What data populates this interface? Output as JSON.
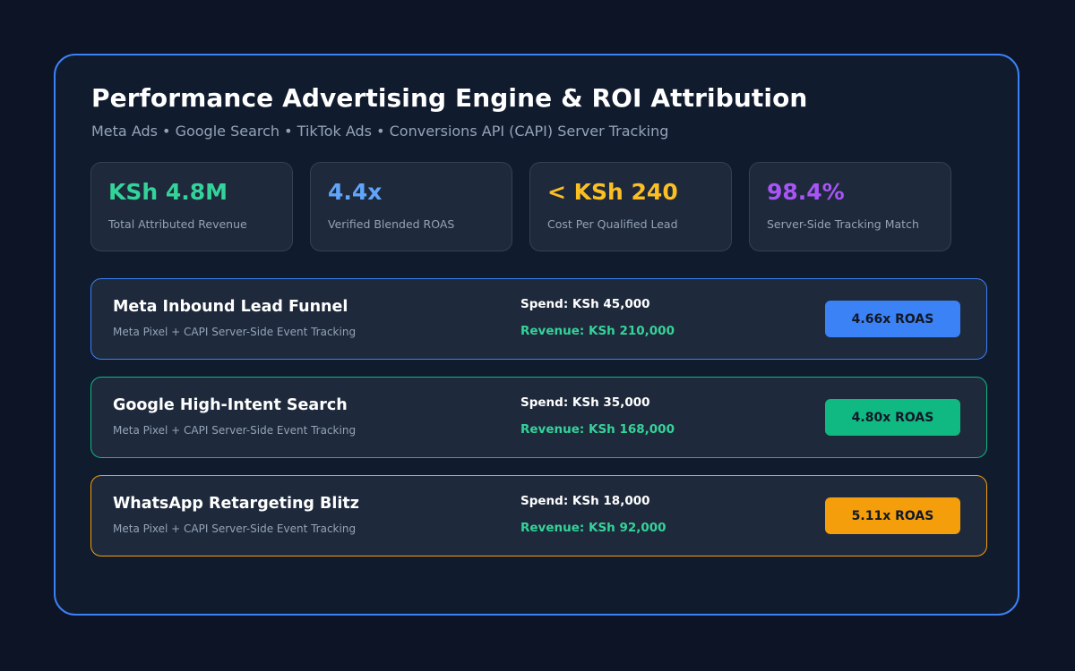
{
  "header": {
    "title": "Performance Advertising Engine & ROI Attribution",
    "subtitle": "Meta Ads • Google Search • TikTok Ads • Conversions API (CAPI) Server Tracking"
  },
  "metrics": [
    {
      "value": "KSh 4.8M",
      "label": "Total Attributed Revenue",
      "color": "#34d399"
    },
    {
      "value": "4.4x",
      "label": "Verified Blended ROAS",
      "color": "#60a5fa"
    },
    {
      "value": "< KSh 240",
      "label": "Cost Per Qualified Lead",
      "color": "#fbbf24"
    },
    {
      "value": "98.4%",
      "label": "Server-Side Tracking Match",
      "color": "#a855f7"
    }
  ],
  "campaigns": [
    {
      "name": "Meta Inbound Lead Funnel",
      "tracking": "Meta Pixel + CAPI Server-Side Event Tracking",
      "spend": "Spend: KSh 45,000",
      "revenue": "Revenue: KSh 210,000",
      "roas": "4.66x ROAS",
      "accent": "#3b82f6"
    },
    {
      "name": "Google High-Intent Search",
      "tracking": "Meta Pixel + CAPI Server-Side Event Tracking",
      "spend": "Spend: KSh 35,000",
      "revenue": "Revenue: KSh 168,000",
      "roas": "4.80x ROAS",
      "accent": "#10b981"
    },
    {
      "name": "WhatsApp Retargeting Blitz",
      "tracking": "Meta Pixel + CAPI Server-Side Event Tracking",
      "spend": "Spend: KSh 18,000",
      "revenue": "Revenue: KSh 92,000",
      "roas": "5.11x ROAS",
      "accent": "#f59e0b"
    }
  ]
}
